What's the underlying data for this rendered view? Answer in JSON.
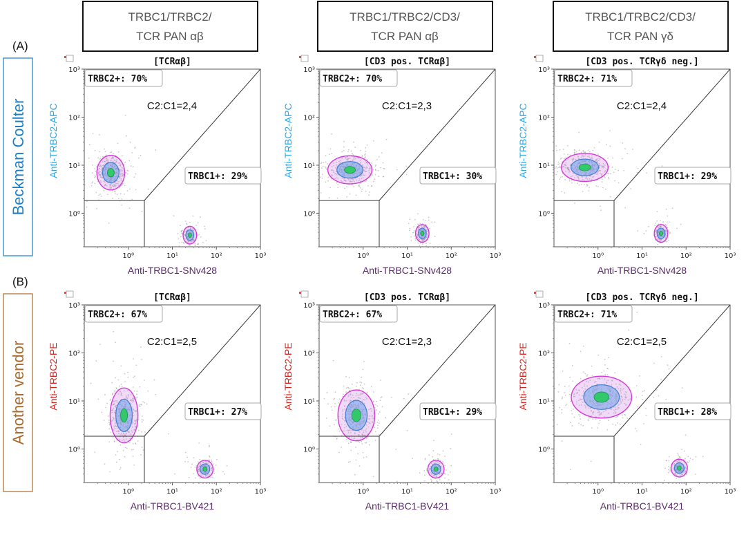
{
  "colors": {
    "beckman": "#1a7fc9",
    "vendor": "#a86a2c",
    "apc_label": "#2aa6e8",
    "pe_label": "#d8201c",
    "x_label": "#5a2a6a",
    "header_text": "#555555",
    "pop_outline": "#d33ad8",
    "pop_mid": "#3f7fd6",
    "pop_core": "#31c96a",
    "dots": "#9a9a9a"
  },
  "headers": [
    {
      "line1": "TRBC1/TRBC2/",
      "line2": "TCR PAN αβ"
    },
    {
      "line1": "TRBC1/TRBC2/CD3/",
      "line2": "TCR PAN αβ"
    },
    {
      "line1": "TRBC1/TRBC2/CD3/",
      "line2": "TCR PAN γδ"
    }
  ],
  "rows": [
    {
      "marker": "(A)",
      "vendor": "Beckman Coulter"
    },
    {
      "marker": "(B)",
      "vendor": "Another vendor"
    }
  ],
  "chart_data": [
    {
      "type": "scatter",
      "row": 0,
      "col": 0,
      "title": "[TCRαβ]",
      "xlabel": "Anti-TRBC1-SNv428",
      "ylabel": "Anti-TRBC2-APC",
      "x_scale": "log",
      "y_scale": "log",
      "xlim": [
        0.1,
        1000
      ],
      "ylim": [
        0.2,
        1000
      ],
      "x_ticks": [
        "10⁰",
        "10¹",
        "10²",
        "10³"
      ],
      "y_ticks": [
        "10⁰",
        "10¹",
        "10²",
        "10³"
      ],
      "annotations": {
        "trbc2": "TRBC2+: 70%",
        "ratio": "C2:C1=2,4",
        "trbc1": "TRBC1+: 29%"
      },
      "trbc2_pct": 70,
      "trbc1_pct": 29,
      "ratio": 2.4,
      "populations": [
        {
          "name": "TRBC2+",
          "center": [
            0.4,
            7
          ],
          "spread": [
            2.0,
            2.2
          ]
        },
        {
          "name": "TRBC1+",
          "center": [
            25,
            0.35
          ],
          "spread": [
            1.4,
            1.5
          ]
        }
      ]
    },
    {
      "type": "scatter",
      "row": 0,
      "col": 1,
      "title": "[CD3 pos. TCRαβ]",
      "xlabel": "Anti-TRBC1-SNv428",
      "ylabel": "Anti-TRBC2-APC",
      "x_scale": "log",
      "y_scale": "log",
      "xlim": [
        0.1,
        1000
      ],
      "ylim": [
        0.2,
        1000
      ],
      "x_ticks": [
        "10⁰",
        "10¹",
        "10²",
        "10³"
      ],
      "y_ticks": [
        "10⁰",
        "10¹",
        "10²",
        "10³"
      ],
      "annotations": {
        "trbc2": "TRBC2+: 70%",
        "ratio": "C2:C1=2,3",
        "trbc1": "TRBC1+: 30%"
      },
      "trbc2_pct": 70,
      "trbc1_pct": 30,
      "ratio": 2.3,
      "populations": [
        {
          "name": "TRBC2+",
          "center": [
            0.5,
            8
          ],
          "spread": [
            3.0,
            1.9
          ]
        },
        {
          "name": "TRBC1+",
          "center": [
            22,
            0.38
          ],
          "spread": [
            1.4,
            1.5
          ]
        }
      ]
    },
    {
      "type": "scatter",
      "row": 0,
      "col": 2,
      "title": "[CD3 pos. TCRγδ neg.]",
      "xlabel": "Anti-TRBC1-SNv428",
      "ylabel": "Anti-TRBC2-APC",
      "x_scale": "log",
      "y_scale": "log",
      "xlim": [
        0.1,
        1000
      ],
      "ylim": [
        0.2,
        1000
      ],
      "x_ticks": [
        "10⁰",
        "10¹",
        "10²",
        "10³"
      ],
      "y_ticks": [
        "10⁰",
        "10¹",
        "10²",
        "10³"
      ],
      "annotations": {
        "trbc2": "TRBC2+: 71%",
        "ratio": "C2:C1=2,4",
        "trbc1": "TRBC1+: 29%"
      },
      "trbc2_pct": 71,
      "trbc1_pct": 29,
      "ratio": 2.4,
      "populations": [
        {
          "name": "TRBC2+",
          "center": [
            0.5,
            9
          ],
          "spread": [
            3.2,
            1.9
          ]
        },
        {
          "name": "TRBC1+",
          "center": [
            27,
            0.38
          ],
          "spread": [
            1.4,
            1.5
          ]
        }
      ]
    },
    {
      "type": "scatter",
      "row": 1,
      "col": 0,
      "title": "[TCRαβ]",
      "xlabel": "Anti-TRBC1-BV421",
      "ylabel": "Anti-TRBC2-PE",
      "x_scale": "log",
      "y_scale": "log",
      "xlim": [
        0.1,
        1000
      ],
      "ylim": [
        0.2,
        1000
      ],
      "x_ticks": [
        "10⁰",
        "10¹",
        "10²",
        "10³"
      ],
      "y_ticks": [
        "10⁰",
        "10¹",
        "10²",
        "10³"
      ],
      "annotations": {
        "trbc2": "TRBC2+: 67%",
        "ratio": "C2:C1=2,5",
        "trbc1": "TRBC1+: 27%"
      },
      "trbc2_pct": 67,
      "trbc1_pct": 27,
      "ratio": 2.5,
      "populations": [
        {
          "name": "TRBC2+",
          "center": [
            0.8,
            5
          ],
          "spread": [
            2.0,
            3.5
          ]
        },
        {
          "name": "TRBC1+",
          "center": [
            55,
            0.38
          ],
          "spread": [
            1.5,
            1.5
          ]
        }
      ]
    },
    {
      "type": "scatter",
      "row": 1,
      "col": 1,
      "title": "[CD3 pos. TCRαβ]",
      "xlabel": "Anti-TRBC1-BV421",
      "ylabel": "Anti-TRBC2-PE",
      "x_scale": "log",
      "y_scale": "log",
      "xlim": [
        0.1,
        1000
      ],
      "ylim": [
        0.2,
        1000
      ],
      "x_ticks": [
        "10⁰",
        "10¹",
        "10²",
        "10³"
      ],
      "y_ticks": [
        "10⁰",
        "10¹",
        "10²",
        "10³"
      ],
      "annotations": {
        "trbc2": "TRBC2+: 67%",
        "ratio": "C2:C1=2,3",
        "trbc1": "TRBC1+: 29%"
      },
      "trbc2_pct": 67,
      "trbc1_pct": 29,
      "ratio": 2.3,
      "populations": [
        {
          "name": "TRBC2+",
          "center": [
            0.7,
            5
          ],
          "spread": [
            2.5,
            3.2
          ]
        },
        {
          "name": "TRBC1+",
          "center": [
            45,
            0.38
          ],
          "spread": [
            1.5,
            1.5
          ]
        }
      ]
    },
    {
      "type": "scatter",
      "row": 1,
      "col": 2,
      "title": "[CD3 pos. TCRγδ neg.]",
      "xlabel": "Anti-TRBC1-BV421",
      "ylabel": "Anti-TRBC2-PE",
      "x_scale": "log",
      "y_scale": "log",
      "xlim": [
        0.1,
        1000
      ],
      "ylim": [
        0.2,
        1000
      ],
      "x_ticks": [
        "10⁰",
        "10¹",
        "10²",
        "10³"
      ],
      "y_ticks": [
        "10⁰",
        "10¹",
        "10²",
        "10³"
      ],
      "annotations": {
        "trbc2": "TRBC2+: 71%",
        "ratio": "C2:C1=2,5",
        "trbc1": "TRBC1+: 28%"
      },
      "trbc2_pct": 71,
      "trbc1_pct": 28,
      "ratio": 2.5,
      "populations": [
        {
          "name": "TRBC2+",
          "center": [
            1.2,
            12
          ],
          "spread": [
            4.5,
            2.6
          ]
        },
        {
          "name": "TRBC1+",
          "center": [
            70,
            0.4
          ],
          "spread": [
            1.5,
            1.5
          ]
        }
      ]
    }
  ]
}
